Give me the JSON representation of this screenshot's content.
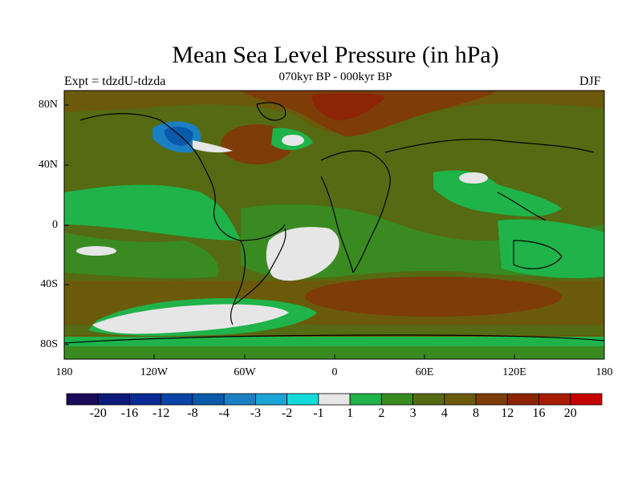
{
  "title": "Mean Sea Level Pressure (in hPa)",
  "subtitle": "070kyr BP - 000kyr BP",
  "experiment": "Expt = tdzdU-tdzda",
  "season": "DJF",
  "lat_labels": [
    "80N",
    "40N",
    "0",
    "40S",
    "80S"
  ],
  "lon_labels": [
    "180",
    "120W",
    "60W",
    "0",
    "60E",
    "120E",
    "180"
  ],
  "colorbar": {
    "colors": [
      "#1a0a5a",
      "#0d1a7a",
      "#0a2a95",
      "#0a44a5",
      "#0a5aaa",
      "#1b7fc4",
      "#1ba4d4",
      "#14dada",
      "#e6e6e6",
      "#1fb34a",
      "#3a8a22",
      "#556a12",
      "#6b5a0c",
      "#7d3c08",
      "#8c2406",
      "#a81c02",
      "#c70000"
    ],
    "labels": [
      "-20",
      "-16",
      "-12",
      "-8",
      "-4",
      "-3",
      "-2",
      "-1",
      "1",
      "2",
      "3",
      "4",
      "8",
      "12",
      "16",
      "20"
    ]
  }
}
